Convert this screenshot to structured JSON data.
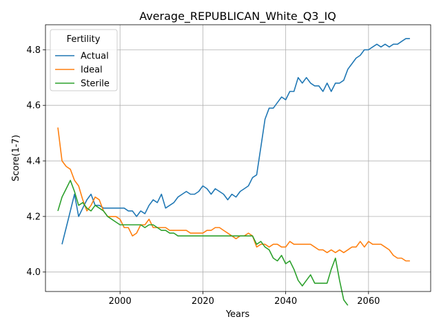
{
  "chart_data": {
    "type": "line",
    "title": "Average_REPUBLICAN_White_Q3_IQ",
    "xlabel": "Years",
    "ylabel": "Score(1-7)",
    "xlim": [
      1982,
      2075
    ],
    "ylim": [
      3.93,
      4.89
    ],
    "xticks": [
      2000,
      2020,
      2040,
      2060
    ],
    "xtick_labels": [
      "2000",
      "2020",
      "2040",
      "2060"
    ],
    "yticks": [
      4.0,
      4.2,
      4.4,
      4.6,
      4.8
    ],
    "ytick_labels": [
      "4.0",
      "4.2",
      "4.4",
      "4.6",
      "4.8"
    ],
    "grid": true,
    "legend": {
      "title": "Fertility",
      "position": "top-left"
    },
    "series": [
      {
        "name": "Actual",
        "color": "#1f77b4",
        "x": [
          1986,
          1987,
          1988,
          1989,
          1990,
          1991,
          1992,
          1993,
          1994,
          1995,
          1996,
          1997,
          1998,
          1999,
          2000,
          2001,
          2002,
          2003,
          2004,
          2005,
          2006,
          2007,
          2008,
          2009,
          2010,
          2011,
          2012,
          2013,
          2014,
          2015,
          2016,
          2017,
          2018,
          2019,
          2020,
          2021,
          2022,
          2023,
          2024,
          2025,
          2026,
          2027,
          2028,
          2029,
          2030,
          2031,
          2032,
          2033,
          2034,
          2035,
          2036,
          2037,
          2038,
          2039,
          2040,
          2041,
          2042,
          2043,
          2044,
          2045,
          2046,
          2047,
          2048,
          2049,
          2050,
          2051,
          2052,
          2053,
          2054,
          2055,
          2056,
          2057,
          2058,
          2059,
          2060,
          2061,
          2062,
          2063,
          2064,
          2065,
          2066,
          2067,
          2068,
          2069,
          2070
        ],
        "y": [
          4.1,
          4.16,
          4.22,
          4.28,
          4.2,
          4.23,
          4.26,
          4.28,
          4.24,
          4.24,
          4.23,
          4.23,
          4.23,
          4.23,
          4.23,
          4.23,
          4.22,
          4.22,
          4.2,
          4.22,
          4.21,
          4.24,
          4.26,
          4.25,
          4.28,
          4.23,
          4.24,
          4.25,
          4.27,
          4.28,
          4.29,
          4.28,
          4.28,
          4.29,
          4.31,
          4.3,
          4.28,
          4.3,
          4.29,
          4.28,
          4.26,
          4.28,
          4.27,
          4.29,
          4.3,
          4.31,
          4.34,
          4.35,
          4.45,
          4.55,
          4.59,
          4.59,
          4.61,
          4.63,
          4.62,
          4.65,
          4.65,
          4.7,
          4.68,
          4.7,
          4.68,
          4.67,
          4.67,
          4.65,
          4.68,
          4.65,
          4.68,
          4.68,
          4.69,
          4.73,
          4.75,
          4.77,
          4.78,
          4.8,
          4.8,
          4.81,
          4.82,
          4.81,
          4.82,
          4.81,
          4.82,
          4.82,
          4.83,
          4.84,
          4.84
        ]
      },
      {
        "name": "Ideal",
        "color": "#ff7f0e",
        "x": [
          1985,
          1986,
          1987,
          1988,
          1989,
          1990,
          1991,
          1992,
          1993,
          1994,
          1995,
          1996,
          1997,
          1998,
          1999,
          2000,
          2001,
          2002,
          2003,
          2004,
          2005,
          2006,
          2007,
          2008,
          2009,
          2010,
          2011,
          2012,
          2013,
          2014,
          2015,
          2016,
          2017,
          2018,
          2019,
          2020,
          2021,
          2022,
          2023,
          2024,
          2025,
          2026,
          2027,
          2028,
          2029,
          2030,
          2031,
          2032,
          2033,
          2034,
          2035,
          2036,
          2037,
          2038,
          2039,
          2040,
          2041,
          2042,
          2043,
          2044,
          2045,
          2046,
          2047,
          2048,
          2049,
          2050,
          2051,
          2052,
          2053,
          2054,
          2055,
          2056,
          2057,
          2058,
          2059,
          2060,
          2061,
          2062,
          2063,
          2064,
          2065,
          2066,
          2067,
          2068,
          2069,
          2070
        ],
        "y": [
          4.52,
          4.4,
          4.38,
          4.37,
          4.33,
          4.31,
          4.26,
          4.22,
          4.24,
          4.27,
          4.26,
          4.22,
          4.2,
          4.2,
          4.2,
          4.19,
          4.16,
          4.16,
          4.13,
          4.14,
          4.17,
          4.17,
          4.19,
          4.16,
          4.16,
          4.16,
          4.16,
          4.15,
          4.15,
          4.15,
          4.15,
          4.15,
          4.14,
          4.14,
          4.14,
          4.14,
          4.15,
          4.15,
          4.16,
          4.16,
          4.15,
          4.14,
          4.13,
          4.12,
          4.13,
          4.13,
          4.14,
          4.13,
          4.09,
          4.1,
          4.1,
          4.09,
          4.1,
          4.1,
          4.09,
          4.09,
          4.11,
          4.1,
          4.1,
          4.1,
          4.1,
          4.1,
          4.09,
          4.08,
          4.08,
          4.07,
          4.08,
          4.07,
          4.08,
          4.07,
          4.08,
          4.09,
          4.09,
          4.11,
          4.09,
          4.11,
          4.1,
          4.1,
          4.1,
          4.09,
          4.08,
          4.06,
          4.05,
          4.05,
          4.04,
          4.04
        ]
      },
      {
        "name": "Sterile",
        "color": "#2ca02c",
        "x": [
          1985,
          1986,
          1987,
          1988,
          1989,
          1990,
          1991,
          1992,
          1993,
          1994,
          1995,
          1996,
          1997,
          1998,
          1999,
          2000,
          2001,
          2002,
          2003,
          2004,
          2005,
          2006,
          2007,
          2008,
          2009,
          2010,
          2011,
          2012,
          2013,
          2014,
          2015,
          2016,
          2017,
          2018,
          2019,
          2020,
          2021,
          2022,
          2023,
          2024,
          2025,
          2026,
          2027,
          2028,
          2029,
          2030,
          2031,
          2032,
          2033,
          2034,
          2035,
          2036,
          2037,
          2038,
          2039,
          2040,
          2041,
          2042,
          2043,
          2044,
          2045,
          2046,
          2047,
          2048,
          2049,
          2050,
          2051,
          2052,
          2053,
          2054,
          2055
        ],
        "y": [
          4.22,
          4.27,
          4.3,
          4.33,
          4.29,
          4.24,
          4.25,
          4.23,
          4.22,
          4.24,
          4.23,
          4.22,
          4.2,
          4.19,
          4.18,
          4.17,
          4.17,
          4.17,
          4.17,
          4.17,
          4.17,
          4.16,
          4.17,
          4.17,
          4.16,
          4.15,
          4.15,
          4.14,
          4.14,
          4.13,
          4.13,
          4.13,
          4.13,
          4.13,
          4.13,
          4.13,
          4.13,
          4.13,
          4.13,
          4.13,
          4.13,
          4.13,
          4.13,
          4.13,
          4.13,
          4.13,
          4.13,
          4.13,
          4.1,
          4.11,
          4.09,
          4.08,
          4.05,
          4.04,
          4.06,
          4.03,
          4.04,
          4.01,
          3.97,
          3.95,
          3.97,
          3.99,
          3.96,
          3.96,
          3.96,
          3.96,
          4.01,
          4.05,
          3.97,
          3.9,
          3.88
        ]
      }
    ]
  }
}
